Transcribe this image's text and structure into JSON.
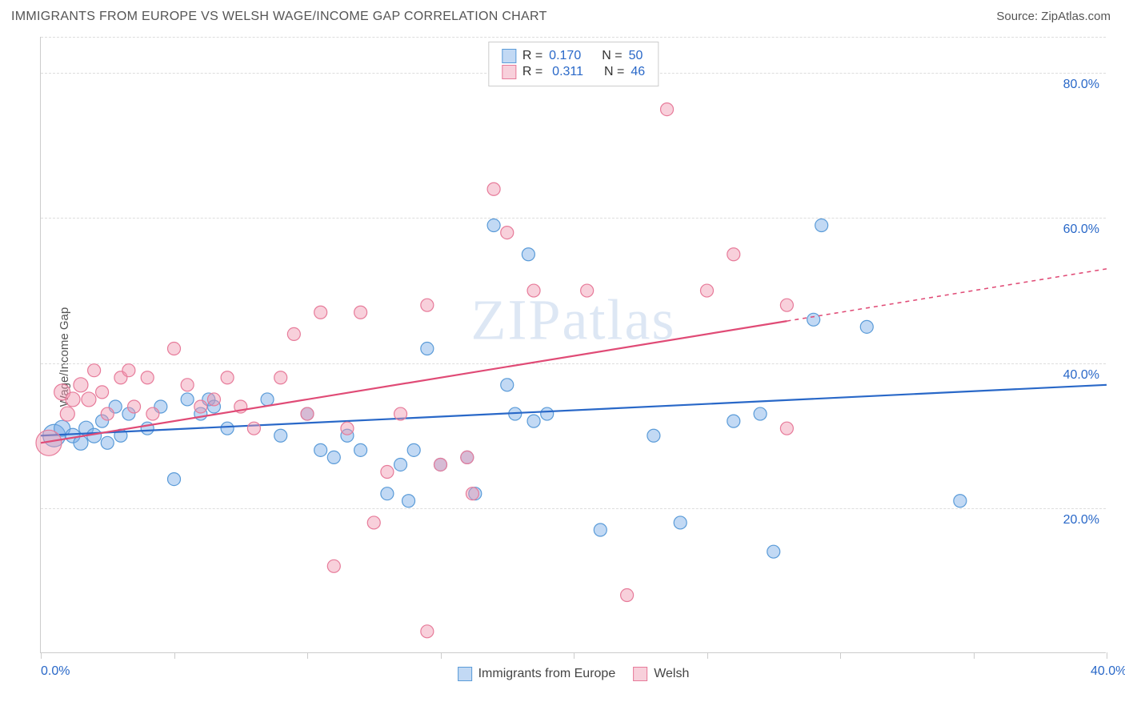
{
  "header": {
    "title": "IMMIGRANTS FROM EUROPE VS WELSH WAGE/INCOME GAP CORRELATION CHART",
    "source_label": "Source: ",
    "source_name": "ZipAtlas.com"
  },
  "watermark": "ZIPatlas",
  "chart": {
    "type": "scatter",
    "y_axis_label": "Wage/Income Gap",
    "xlim": [
      0,
      40
    ],
    "ylim": [
      0,
      85
    ],
    "xtick_positions": [
      0,
      5,
      10,
      15,
      20,
      25,
      30,
      35,
      40
    ],
    "xtick_labels": {
      "0": "0.0%",
      "40": "40.0%"
    },
    "ytick_positions": [
      20,
      40,
      60,
      80
    ],
    "ytick_labels": {
      "20": "20.0%",
      "40": "40.0%",
      "60": "60.0%",
      "80": "80.0%"
    },
    "grid_color": "#dddddd",
    "background_color": "#ffffff",
    "axis_color": "#cccccc",
    "tick_label_color": "#2968c8",
    "axis_label_color": "#555555",
    "tick_label_fontsize": 16,
    "axis_label_fontsize": 15,
    "marker_radius_default": 8,
    "series": [
      {
        "name": "Immigrants from Europe",
        "fill_color": "rgba(120,170,230,0.45)",
        "stroke_color": "#5a9bd8",
        "line_color": "#2968c8",
        "line_width": 2.2,
        "r_value": "0.170",
        "n_value": "50",
        "trend": {
          "x1": 0,
          "y1": 30,
          "x2": 40,
          "y2": 37,
          "dash_from_x": 40
        },
        "points": [
          [
            0.5,
            30,
            14
          ],
          [
            0.8,
            31,
            10
          ],
          [
            1.2,
            30,
            9
          ],
          [
            1.5,
            29,
            9
          ],
          [
            1.7,
            31,
            9
          ],
          [
            2.0,
            30,
            9
          ],
          [
            2.3,
            32,
            8
          ],
          [
            2.5,
            29,
            8
          ],
          [
            2.8,
            34,
            8
          ],
          [
            3.0,
            30,
            8
          ],
          [
            3.3,
            33,
            8
          ],
          [
            4.0,
            31,
            8
          ],
          [
            4.5,
            34,
            8
          ],
          [
            5.0,
            24,
            8
          ],
          [
            5.5,
            35,
            8
          ],
          [
            6.0,
            33,
            8
          ],
          [
            6.3,
            35,
            8
          ],
          [
            6.5,
            34,
            8
          ],
          [
            7.0,
            31,
            8
          ],
          [
            8.5,
            35,
            8
          ],
          [
            9.0,
            30,
            8
          ],
          [
            10.0,
            33,
            8
          ],
          [
            10.5,
            28,
            8
          ],
          [
            11.0,
            27,
            8
          ],
          [
            11.5,
            30,
            8
          ],
          [
            12.0,
            28,
            8
          ],
          [
            13.0,
            22,
            8
          ],
          [
            13.5,
            26,
            8
          ],
          [
            13.8,
            21,
            8
          ],
          [
            14.0,
            28,
            8
          ],
          [
            14.5,
            42,
            8
          ],
          [
            15.0,
            26,
            8
          ],
          [
            16.0,
            27,
            8
          ],
          [
            16.3,
            22,
            8
          ],
          [
            17.0,
            59,
            8
          ],
          [
            17.5,
            37,
            8
          ],
          [
            17.8,
            33,
            8
          ],
          [
            18.3,
            55,
            8
          ],
          [
            18.5,
            32,
            8
          ],
          [
            19.0,
            33,
            8
          ],
          [
            21.0,
            17,
            8
          ],
          [
            23.0,
            30,
            8
          ],
          [
            24.0,
            18,
            8
          ],
          [
            26.0,
            32,
            8
          ],
          [
            27.0,
            33,
            8
          ],
          [
            27.5,
            14,
            8
          ],
          [
            29.0,
            46,
            8
          ],
          [
            29.3,
            59,
            8
          ],
          [
            31.0,
            45,
            8
          ],
          [
            34.5,
            21,
            8
          ]
        ]
      },
      {
        "name": "Welsh",
        "fill_color": "rgba(240,150,175,0.45)",
        "stroke_color": "#e77b9a",
        "line_color": "#e04b76",
        "line_width": 2.2,
        "r_value": "0.311",
        "n_value": "46",
        "trend": {
          "x1": 0,
          "y1": 29,
          "x2": 40,
          "y2": 53,
          "dash_from_x": 28
        },
        "points": [
          [
            0.3,
            29,
            16
          ],
          [
            0.8,
            36,
            10
          ],
          [
            1.0,
            33,
            9
          ],
          [
            1.2,
            35,
            9
          ],
          [
            1.5,
            37,
            9
          ],
          [
            1.8,
            35,
            9
          ],
          [
            2.0,
            39,
            8
          ],
          [
            2.3,
            36,
            8
          ],
          [
            2.5,
            33,
            8
          ],
          [
            3.0,
            38,
            8
          ],
          [
            3.3,
            39,
            8
          ],
          [
            3.5,
            34,
            8
          ],
          [
            4.0,
            38,
            8
          ],
          [
            4.2,
            33,
            8
          ],
          [
            5.0,
            42,
            8
          ],
          [
            5.5,
            37,
            8
          ],
          [
            6.0,
            34,
            8
          ],
          [
            6.5,
            35,
            8
          ],
          [
            7.0,
            38,
            8
          ],
          [
            7.5,
            34,
            8
          ],
          [
            8.0,
            31,
            8
          ],
          [
            9.0,
            38,
            8
          ],
          [
            9.5,
            44,
            8
          ],
          [
            10.0,
            33,
            8
          ],
          [
            10.5,
            47,
            8
          ],
          [
            11.0,
            12,
            8
          ],
          [
            11.5,
            31,
            8
          ],
          [
            12.0,
            47,
            8
          ],
          [
            12.5,
            18,
            8
          ],
          [
            13.0,
            25,
            8
          ],
          [
            13.5,
            33,
            8
          ],
          [
            14.5,
            48,
            8
          ],
          [
            14.5,
            3,
            8
          ],
          [
            15.0,
            26,
            8
          ],
          [
            16.0,
            27,
            8
          ],
          [
            16.2,
            22,
            8
          ],
          [
            17.0,
            64,
            8
          ],
          [
            17.5,
            58,
            8
          ],
          [
            18.5,
            50,
            8
          ],
          [
            20.5,
            50,
            8
          ],
          [
            22.0,
            8,
            8
          ],
          [
            23.5,
            75,
            8
          ],
          [
            25.0,
            50,
            8
          ],
          [
            26.0,
            55,
            8
          ],
          [
            28.0,
            31,
            8
          ],
          [
            28.0,
            48,
            8
          ]
        ]
      }
    ]
  },
  "legend_top": {
    "r_label": "R =",
    "n_label": "N ="
  },
  "legend_bottom": {}
}
